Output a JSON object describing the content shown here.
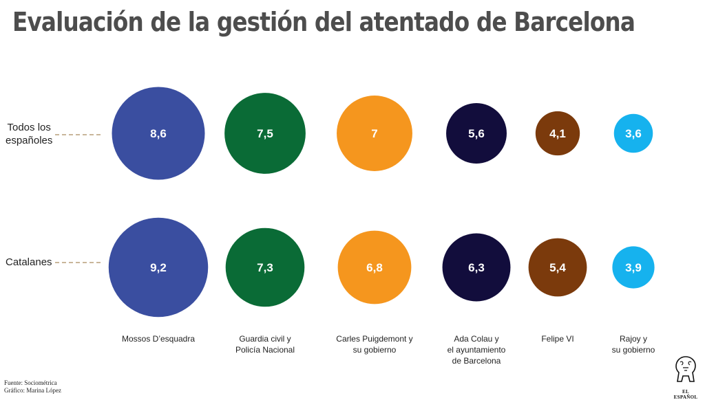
{
  "title": "Evaluación de la gestión del atentado de Barcelona",
  "row_labels": {
    "row1": "Todos los\nespañoles",
    "row2": "Catalanes"
  },
  "footer": {
    "source": "Fuente: Sociométrica",
    "graphic": "Gráfico: Marina López"
  },
  "logo": {
    "text": "EL ESPAÑOL",
    "icon": "lion-icon"
  },
  "colors": {
    "mossos": "#3a4ea0",
    "guardia": "#0a6b36",
    "puigdemont": "#f5961e",
    "colau": "#120d3c",
    "felipe": "#7b3a0c",
    "rajoy": "#16b2ee"
  },
  "chart_data": {
    "type": "bubble",
    "title": "Evaluación de la gestión del atentado de Barcelona",
    "categories": [
      "Mossos D’esquadra",
      "Guardia civil y\nPolicía Nacional",
      "Carles Puigdemont y\nsu gobierno",
      "Ada Colau y\nel ayuntamiento\nde Barcelona",
      "Felipe VI",
      "Rajoy y\nsu gobierno"
    ],
    "series": [
      {
        "name": "Todos los españoles",
        "values": [
          8.6,
          7.5,
          7,
          5.6,
          4.1,
          3.6
        ],
        "labels": [
          "8,6",
          "7,5",
          "7",
          "5,6",
          "4,1",
          "3,6"
        ]
      },
      {
        "name": "Catalanes",
        "values": [
          9.2,
          7.3,
          6.8,
          6.3,
          5.4,
          3.9
        ],
        "labels": [
          "9,2",
          "7,3",
          "6,8",
          "6,3",
          "5,4",
          "3,9"
        ]
      }
    ]
  }
}
